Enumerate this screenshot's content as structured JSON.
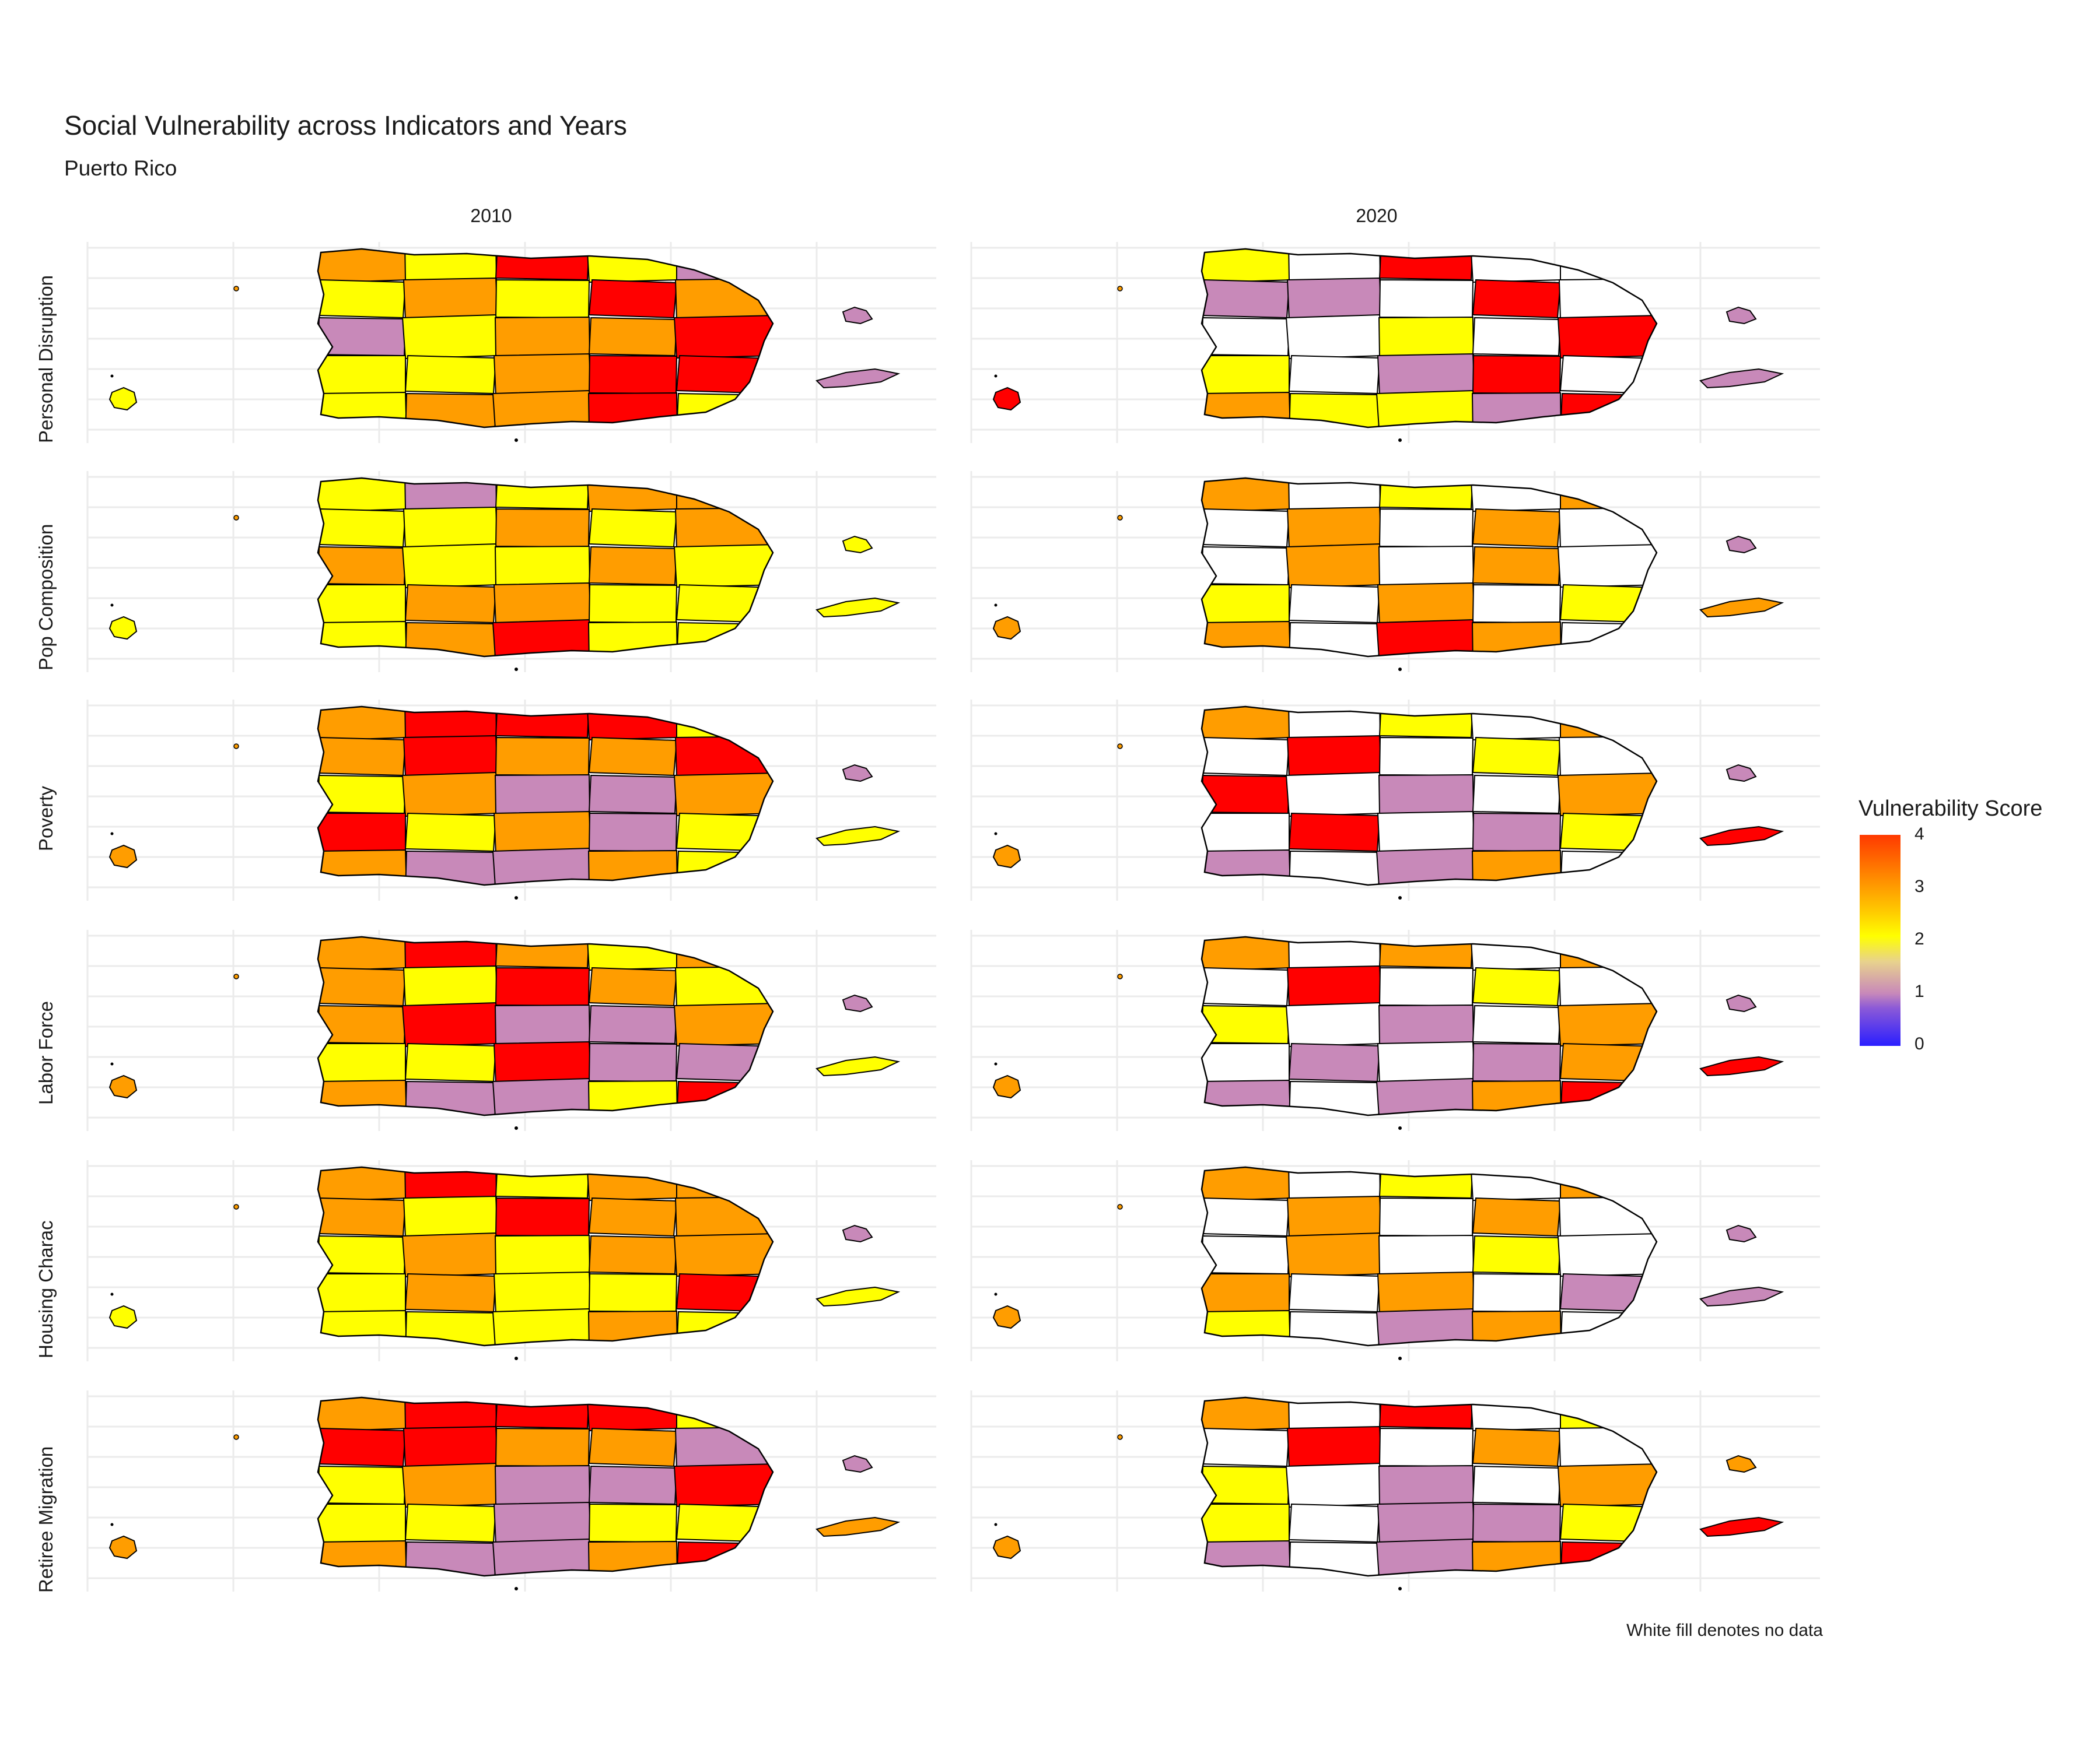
{
  "title": "Social Vulnerability across Indicators and Years",
  "subtitle": "Puerto Rico",
  "caption": "White fill denotes no data",
  "columns": [
    "2010",
    "2020"
  ],
  "rows": [
    "Personal Disruption",
    "Pop Composition",
    "Poverty",
    "Labor Force",
    "Housing Charac",
    "Retiree Migration"
  ],
  "legend": {
    "title": "Vulnerability Score",
    "ticks": [
      "0",
      "1",
      "2",
      "3",
      "4"
    ],
    "range": [
      0,
      4
    ],
    "colors": {
      "low": "#2a1eff",
      "mid_low": "#c889b9",
      "mid": "#ffff00",
      "mid_high": "#ff9d00",
      "high": "#ff0000"
    }
  },
  "palette": {
    "no_data": "#ffffff",
    "score_1": "#c889b9",
    "score_2": "#ffff00",
    "score_3": "#ff9d00",
    "score_4": "#ff0000"
  },
  "map_data": [
    {
      "year": "2010",
      "indicator": "Personal Disruption",
      "mainland": [
        3,
        2,
        4,
        2,
        1,
        2,
        3,
        2,
        4,
        3,
        1,
        2,
        3,
        3,
        4,
        2,
        2,
        3,
        4,
        4,
        2,
        3,
        3,
        4,
        2,
        2,
        1,
        2,
        3,
        4
      ],
      "mona": 2,
      "vieques": 1,
      "culebra": 1
    },
    {
      "year": "2020",
      "indicator": "Personal Disruption",
      "mainland": [
        2,
        0,
        4,
        0,
        0,
        1,
        1,
        0,
        4,
        0,
        0,
        0,
        2,
        0,
        4,
        2,
        0,
        1,
        4,
        0,
        3,
        2,
        2,
        1,
        4,
        3,
        0,
        0,
        3,
        4
      ],
      "mona": 4,
      "vieques": 1,
      "culebra": 1
    },
    {
      "year": "2010",
      "indicator": "Pop Composition",
      "mainland": [
        2,
        1,
        2,
        3,
        3,
        2,
        2,
        3,
        2,
        3,
        3,
        2,
        2,
        3,
        2,
        2,
        3,
        3,
        2,
        2,
        2,
        3,
        4,
        2,
        2,
        3,
        2,
        2,
        3,
        2
      ],
      "mona": 2,
      "vieques": 2,
      "culebra": 2
    },
    {
      "year": "2020",
      "indicator": "Pop Composition",
      "mainland": [
        3,
        0,
        2,
        0,
        3,
        0,
        3,
        0,
        3,
        0,
        0,
        3,
        0,
        3,
        0,
        2,
        0,
        3,
        0,
        2,
        3,
        0,
        4,
        3,
        0,
        3,
        2,
        0,
        3,
        2
      ],
      "mona": 3,
      "vieques": 3,
      "culebra": 1
    },
    {
      "year": "2010",
      "indicator": "Poverty",
      "mainland": [
        3,
        4,
        4,
        4,
        2,
        3,
        4,
        3,
        3,
        4,
        2,
        3,
        1,
        1,
        3,
        4,
        2,
        3,
        1,
        2,
        3,
        1,
        1,
        3,
        2,
        1,
        2,
        3,
        3,
        1
      ],
      "mona": 3,
      "vieques": 2,
      "culebra": 1
    },
    {
      "year": "2020",
      "indicator": "Poverty",
      "mainland": [
        3,
        0,
        2,
        0,
        3,
        0,
        4,
        0,
        2,
        0,
        4,
        0,
        1,
        0,
        3,
        0,
        4,
        0,
        1,
        2,
        1,
        0,
        1,
        3,
        0,
        4,
        1,
        0,
        3,
        2
      ],
      "mona": 3,
      "vieques": 4,
      "culebra": 1
    },
    {
      "year": "2010",
      "indicator": "Labor Force",
      "mainland": [
        3,
        4,
        3,
        2,
        3,
        3,
        2,
        4,
        3,
        2,
        3,
        4,
        1,
        1,
        3,
        2,
        2,
        4,
        1,
        1,
        3,
        1,
        1,
        2,
        4,
        1,
        2,
        3,
        1,
        2
      ],
      "mona": 3,
      "vieques": 2,
      "culebra": 1
    },
    {
      "year": "2020",
      "indicator": "Labor Force",
      "mainland": [
        3,
        0,
        3,
        0,
        3,
        0,
        4,
        0,
        2,
        0,
        2,
        0,
        1,
        0,
        3,
        0,
        1,
        0,
        1,
        3,
        1,
        0,
        1,
        3,
        4,
        4,
        1,
        0,
        3,
        1
      ],
      "mona": 3,
      "vieques": 4,
      "culebra": 1
    },
    {
      "year": "2010",
      "indicator": "Housing Charac",
      "mainland": [
        3,
        4,
        2,
        3,
        3,
        3,
        2,
        4,
        3,
        3,
        2,
        3,
        2,
        3,
        3,
        2,
        3,
        2,
        2,
        4,
        2,
        2,
        2,
        3,
        2,
        3,
        2,
        3,
        2,
        2
      ],
      "mona": 2,
      "vieques": 2,
      "culebra": 1
    },
    {
      "year": "2020",
      "indicator": "Housing Charac",
      "mainland": [
        3,
        0,
        2,
        0,
        3,
        0,
        3,
        0,
        3,
        0,
        0,
        3,
        0,
        2,
        0,
        3,
        0,
        3,
        0,
        1,
        2,
        0,
        1,
        3,
        0,
        3,
        2,
        0,
        2,
        2
      ],
      "mona": 3,
      "vieques": 1,
      "culebra": 1
    },
    {
      "year": "2010",
      "indicator": "Retiree Migration",
      "mainland": [
        3,
        4,
        4,
        4,
        2,
        4,
        4,
        3,
        3,
        1,
        2,
        3,
        1,
        1,
        4,
        2,
        2,
        1,
        2,
        2,
        3,
        1,
        1,
        3,
        4,
        1,
        2,
        3,
        1,
        2
      ],
      "mona": 3,
      "vieques": 3,
      "culebra": 1
    },
    {
      "year": "2020",
      "indicator": "Retiree Migration",
      "mainland": [
        3,
        0,
        4,
        0,
        2,
        0,
        4,
        0,
        3,
        0,
        2,
        0,
        1,
        0,
        3,
        2,
        0,
        1,
        1,
        2,
        1,
        0,
        1,
        3,
        4,
        4,
        1,
        0,
        3,
        1
      ],
      "mona": 3,
      "vieques": 4,
      "culebra": 3
    }
  ]
}
